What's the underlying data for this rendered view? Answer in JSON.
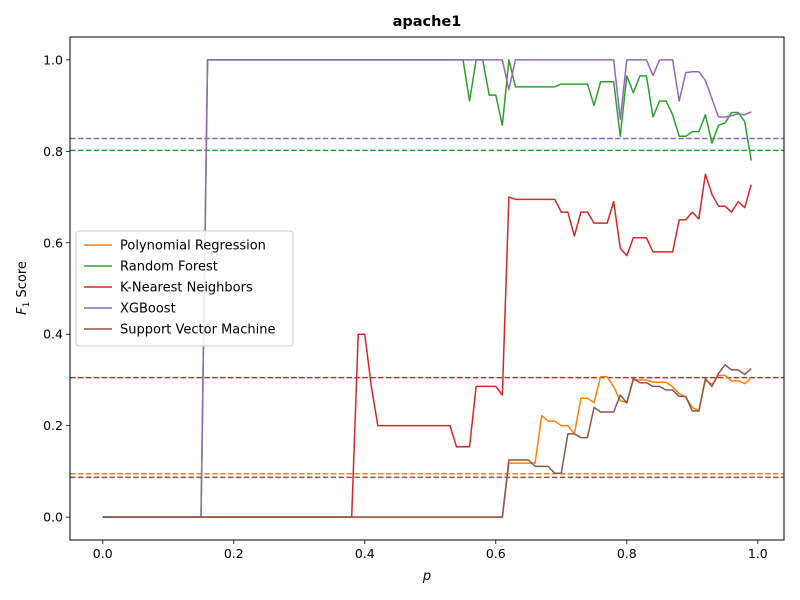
{
  "chart_data": {
    "type": "line",
    "title": "apache1",
    "xlabel": "p",
    "ylabel_main": "F",
    "ylabel_sub": "1",
    "ylabel_rest": " Score",
    "xlim": [
      -0.05,
      1.04
    ],
    "ylim": [
      -0.05,
      1.05
    ],
    "xticks": [
      0.0,
      0.2,
      0.4,
      0.6,
      0.8,
      1.0
    ],
    "xtick_labels": [
      "0.0",
      "0.2",
      "0.4",
      "0.6",
      "0.8",
      "1.0"
    ],
    "yticks": [
      0.0,
      0.2,
      0.4,
      0.6,
      0.8,
      1.0
    ],
    "ytick_labels": [
      "0.0",
      "0.2",
      "0.4",
      "0.6",
      "0.8",
      "1.0"
    ],
    "grid": false,
    "legend_position": "center-left",
    "series": [
      {
        "name": "Polynomial Regression",
        "color": "#ff7f0e",
        "baseline": 0.095,
        "points": [
          [
            0.0,
            0
          ],
          [
            0.15,
            0
          ],
          [
            0.16,
            0
          ],
          [
            0.2,
            0
          ],
          [
            0.3,
            0
          ],
          [
            0.4,
            0
          ],
          [
            0.5,
            0
          ],
          [
            0.61,
            0
          ],
          [
            0.62,
            0.118
          ],
          [
            0.63,
            0.118
          ],
          [
            0.64,
            0.118
          ],
          [
            0.65,
            0.118
          ],
          [
            0.66,
            0.118
          ],
          [
            0.67,
            0.222
          ],
          [
            0.68,
            0.21
          ],
          [
            0.69,
            0.21
          ],
          [
            0.7,
            0.2
          ],
          [
            0.71,
            0.2
          ],
          [
            0.72,
            0.182
          ],
          [
            0.73,
            0.26
          ],
          [
            0.74,
            0.26
          ],
          [
            0.75,
            0.25
          ],
          [
            0.76,
            0.307
          ],
          [
            0.77,
            0.307
          ],
          [
            0.78,
            0.285
          ],
          [
            0.79,
            0.255
          ],
          [
            0.8,
            0.25
          ],
          [
            0.81,
            0.3
          ],
          [
            0.82,
            0.3
          ],
          [
            0.83,
            0.3
          ],
          [
            0.84,
            0.295
          ],
          [
            0.85,
            0.295
          ],
          [
            0.86,
            0.295
          ],
          [
            0.87,
            0.285
          ],
          [
            0.88,
            0.27
          ],
          [
            0.89,
            0.262
          ],
          [
            0.9,
            0.24
          ],
          [
            0.91,
            0.232
          ],
          [
            0.92,
            0.3
          ],
          [
            0.93,
            0.29
          ],
          [
            0.94,
            0.31
          ],
          [
            0.95,
            0.31
          ],
          [
            0.96,
            0.298
          ],
          [
            0.97,
            0.298
          ],
          [
            0.98,
            0.292
          ],
          [
            0.99,
            0.305
          ]
        ]
      },
      {
        "name": "Random Forest",
        "color": "#2ca02c",
        "baseline": 0.802,
        "points": [
          [
            0.0,
            0
          ],
          [
            0.15,
            0
          ],
          [
            0.16,
            1.0
          ],
          [
            0.2,
            1.0
          ],
          [
            0.3,
            1.0
          ],
          [
            0.4,
            1.0
          ],
          [
            0.5,
            1.0
          ],
          [
            0.55,
            1.0
          ],
          [
            0.56,
            0.91
          ],
          [
            0.57,
            1.0
          ],
          [
            0.58,
            1.0
          ],
          [
            0.59,
            0.923
          ],
          [
            0.6,
            0.923
          ],
          [
            0.61,
            0.857
          ],
          [
            0.62,
            1.0
          ],
          [
            0.63,
            0.941
          ],
          [
            0.64,
            0.941
          ],
          [
            0.65,
            0.941
          ],
          [
            0.66,
            0.941
          ],
          [
            0.67,
            0.941
          ],
          [
            0.68,
            0.941
          ],
          [
            0.69,
            0.941
          ],
          [
            0.7,
            0.947
          ],
          [
            0.71,
            0.947
          ],
          [
            0.72,
            0.947
          ],
          [
            0.73,
            0.947
          ],
          [
            0.74,
            0.947
          ],
          [
            0.75,
            0.9
          ],
          [
            0.76,
            0.952
          ],
          [
            0.77,
            0.952
          ],
          [
            0.78,
            0.952
          ],
          [
            0.79,
            0.833
          ],
          [
            0.8,
            0.965
          ],
          [
            0.81,
            0.928
          ],
          [
            0.82,
            0.965
          ],
          [
            0.83,
            0.965
          ],
          [
            0.84,
            0.875
          ],
          [
            0.85,
            0.91
          ],
          [
            0.86,
            0.91
          ],
          [
            0.87,
            0.88
          ],
          [
            0.88,
            0.833
          ],
          [
            0.89,
            0.833
          ],
          [
            0.9,
            0.843
          ],
          [
            0.91,
            0.843
          ],
          [
            0.92,
            0.88
          ],
          [
            0.93,
            0.818
          ],
          [
            0.94,
            0.857
          ],
          [
            0.95,
            0.862
          ],
          [
            0.96,
            0.885
          ],
          [
            0.97,
            0.885
          ],
          [
            0.98,
            0.865
          ],
          [
            0.99,
            0.78
          ]
        ]
      },
      {
        "name": "K-Nearest Neighbors",
        "color": "#d62728",
        "baseline": 0.305,
        "points": [
          [
            0.0,
            0
          ],
          [
            0.1,
            0
          ],
          [
            0.2,
            0
          ],
          [
            0.3,
            0
          ],
          [
            0.38,
            0
          ],
          [
            0.39,
            0.4
          ],
          [
            0.4,
            0.4
          ],
          [
            0.41,
            0.286
          ],
          [
            0.42,
            0.2
          ],
          [
            0.45,
            0.2
          ],
          [
            0.5,
            0.2
          ],
          [
            0.53,
            0.2
          ],
          [
            0.54,
            0.154
          ],
          [
            0.55,
            0.154
          ],
          [
            0.56,
            0.154
          ],
          [
            0.57,
            0.286
          ],
          [
            0.58,
            0.286
          ],
          [
            0.59,
            0.286
          ],
          [
            0.6,
            0.286
          ],
          [
            0.61,
            0.267
          ],
          [
            0.62,
            0.7
          ],
          [
            0.63,
            0.695
          ],
          [
            0.64,
            0.695
          ],
          [
            0.65,
            0.695
          ],
          [
            0.66,
            0.695
          ],
          [
            0.67,
            0.695
          ],
          [
            0.68,
            0.695
          ],
          [
            0.69,
            0.695
          ],
          [
            0.7,
            0.667
          ],
          [
            0.71,
            0.667
          ],
          [
            0.72,
            0.615
          ],
          [
            0.73,
            0.667
          ],
          [
            0.74,
            0.667
          ],
          [
            0.75,
            0.643
          ],
          [
            0.76,
            0.643
          ],
          [
            0.77,
            0.643
          ],
          [
            0.78,
            0.69
          ],
          [
            0.79,
            0.588
          ],
          [
            0.8,
            0.572
          ],
          [
            0.81,
            0.611
          ],
          [
            0.82,
            0.611
          ],
          [
            0.83,
            0.611
          ],
          [
            0.84,
            0.58
          ],
          [
            0.85,
            0.58
          ],
          [
            0.86,
            0.58
          ],
          [
            0.87,
            0.58
          ],
          [
            0.88,
            0.65
          ],
          [
            0.89,
            0.65
          ],
          [
            0.9,
            0.667
          ],
          [
            0.91,
            0.652
          ],
          [
            0.92,
            0.75
          ],
          [
            0.93,
            0.706
          ],
          [
            0.94,
            0.68
          ],
          [
            0.95,
            0.68
          ],
          [
            0.96,
            0.667
          ],
          [
            0.97,
            0.69
          ],
          [
            0.98,
            0.677
          ],
          [
            0.99,
            0.727
          ]
        ]
      },
      {
        "name": "XGBoost",
        "color": "#9467bd",
        "baseline": 0.828,
        "points": [
          [
            0.0,
            0
          ],
          [
            0.15,
            0
          ],
          [
            0.16,
            1.0
          ],
          [
            0.2,
            1.0
          ],
          [
            0.3,
            1.0
          ],
          [
            0.4,
            1.0
          ],
          [
            0.5,
            1.0
          ],
          [
            0.6,
            1.0
          ],
          [
            0.61,
            1.0
          ],
          [
            0.62,
            0.935
          ],
          [
            0.63,
            1.0
          ],
          [
            0.7,
            1.0
          ],
          [
            0.78,
            1.0
          ],
          [
            0.79,
            0.87
          ],
          [
            0.8,
            1.0
          ],
          [
            0.81,
            1.0
          ],
          [
            0.82,
            1.0
          ],
          [
            0.83,
            1.0
          ],
          [
            0.84,
            0.966
          ],
          [
            0.85,
            1.0
          ],
          [
            0.86,
            1.0
          ],
          [
            0.87,
            1.0
          ],
          [
            0.88,
            0.91
          ],
          [
            0.89,
            0.972
          ],
          [
            0.9,
            0.974
          ],
          [
            0.91,
            0.974
          ],
          [
            0.92,
            0.955
          ],
          [
            0.93,
            0.915
          ],
          [
            0.94,
            0.875
          ],
          [
            0.95,
            0.875
          ],
          [
            0.96,
            0.878
          ],
          [
            0.97,
            0.882
          ],
          [
            0.98,
            0.88
          ],
          [
            0.99,
            0.886
          ]
        ]
      },
      {
        "name": "Support Vector Machine",
        "color": "#8c564b",
        "baseline": 0.087,
        "points": [
          [
            0.0,
            0
          ],
          [
            0.2,
            0
          ],
          [
            0.4,
            0
          ],
          [
            0.61,
            0
          ],
          [
            0.62,
            0.125
          ],
          [
            0.63,
            0.125
          ],
          [
            0.64,
            0.125
          ],
          [
            0.65,
            0.125
          ],
          [
            0.66,
            0.111
          ],
          [
            0.67,
            0.111
          ],
          [
            0.68,
            0.111
          ],
          [
            0.69,
            0.096
          ],
          [
            0.7,
            0.096
          ],
          [
            0.71,
            0.182
          ],
          [
            0.72,
            0.182
          ],
          [
            0.73,
            0.174
          ],
          [
            0.74,
            0.174
          ],
          [
            0.75,
            0.24
          ],
          [
            0.76,
            0.23
          ],
          [
            0.77,
            0.23
          ],
          [
            0.78,
            0.23
          ],
          [
            0.79,
            0.267
          ],
          [
            0.8,
            0.25
          ],
          [
            0.81,
            0.303
          ],
          [
            0.82,
            0.294
          ],
          [
            0.83,
            0.294
          ],
          [
            0.84,
            0.286
          ],
          [
            0.85,
            0.286
          ],
          [
            0.86,
            0.278
          ],
          [
            0.87,
            0.278
          ],
          [
            0.88,
            0.264
          ],
          [
            0.89,
            0.264
          ],
          [
            0.9,
            0.232
          ],
          [
            0.91,
            0.232
          ],
          [
            0.92,
            0.303
          ],
          [
            0.93,
            0.286
          ],
          [
            0.94,
            0.314
          ],
          [
            0.95,
            0.333
          ],
          [
            0.96,
            0.322
          ],
          [
            0.97,
            0.322
          ],
          [
            0.98,
            0.312
          ],
          [
            0.99,
            0.325
          ]
        ]
      }
    ]
  }
}
